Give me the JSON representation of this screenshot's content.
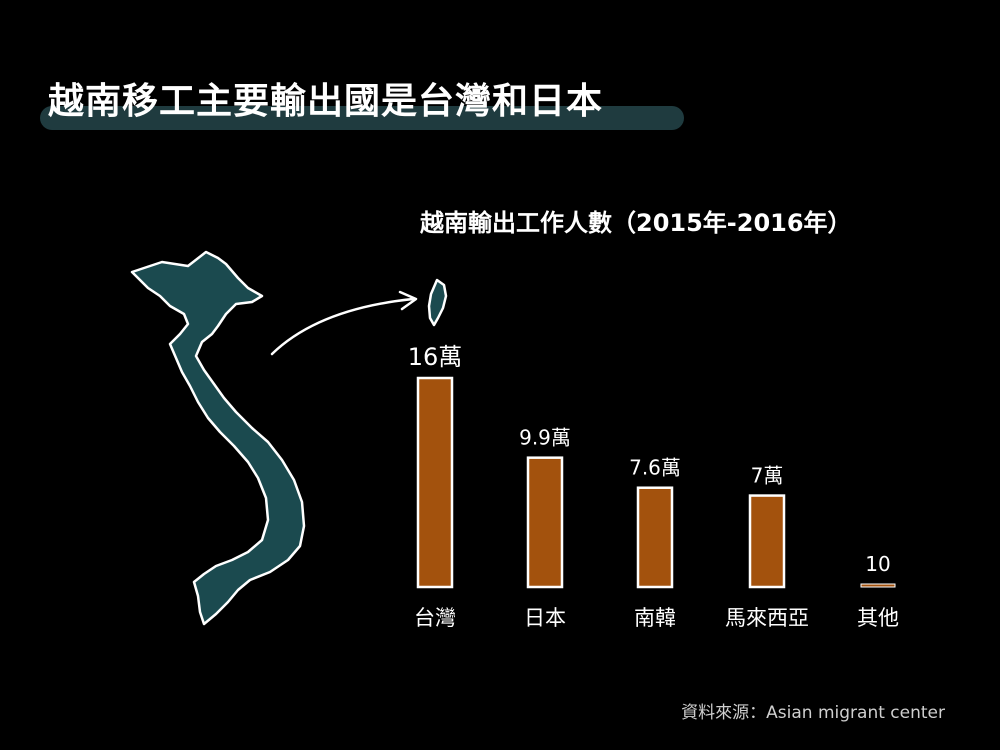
{
  "page": {
    "title": "越南移工主要輸出國是台灣和日本",
    "source": "資料來源：Asian migrant center"
  },
  "chart_data": {
    "type": "bar",
    "title": "越南輸出工作人數（2015年-2016年）",
    "categories": [
      "台灣",
      "日本",
      "南韓",
      "馬來西亞",
      "其他"
    ],
    "values": [
      160000,
      99000,
      76000,
      70000,
      10
    ],
    "data_labels": [
      "16萬",
      "9.9萬",
      "7.6萬",
      "7萬",
      "10"
    ],
    "bar_color": "#a3520d",
    "ylim": [
      0,
      160000
    ]
  },
  "colors": {
    "background": "#000000",
    "map_fill": "#1b4a4f",
    "title_highlight": "#1f3b3f"
  },
  "icons": [
    "vietnam-map",
    "taiwan-map",
    "arrow"
  ]
}
